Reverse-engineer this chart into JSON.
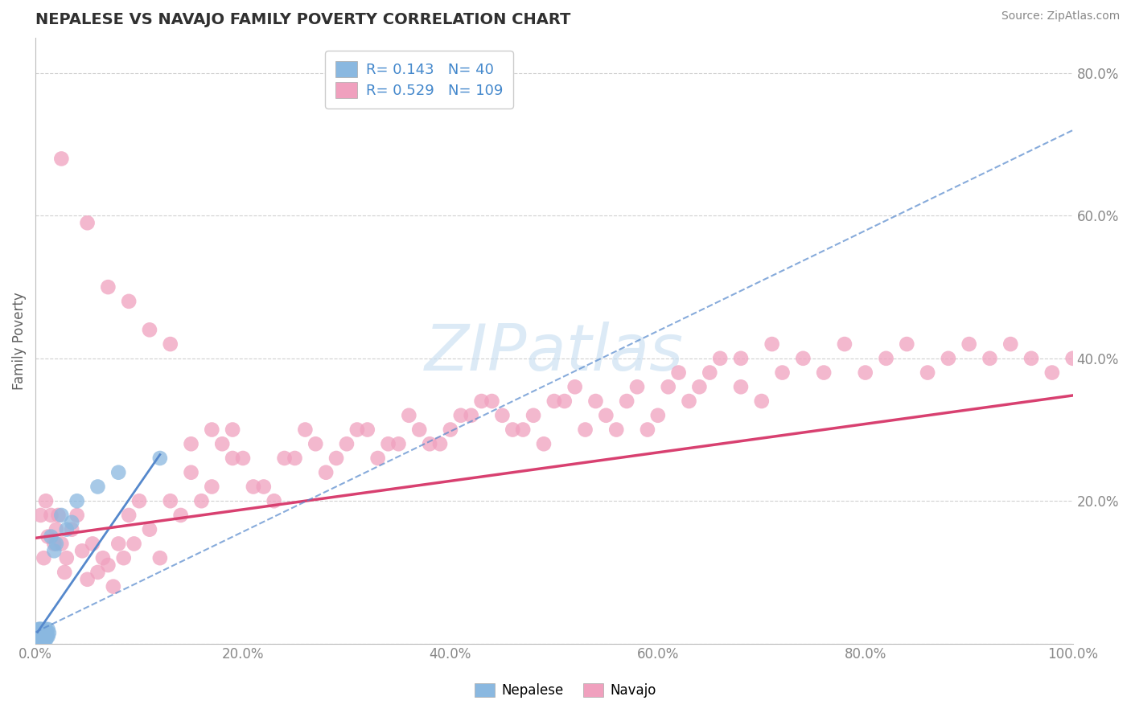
{
  "title": "NEPALESE VS NAVAJO FAMILY POVERTY CORRELATION CHART",
  "source_text": "Source: ZipAtlas.com",
  "ylabel": "Family Poverty",
  "xlim": [
    0.0,
    1.0
  ],
  "ylim": [
    0.0,
    0.85
  ],
  "xtick_vals": [
    0.0,
    0.2,
    0.4,
    0.6,
    0.8,
    1.0
  ],
  "xtick_labels": [
    "0.0%",
    "20.0%",
    "40.0%",
    "60.0%",
    "80.0%",
    "100.0%"
  ],
  "ytick_vals": [
    0.0,
    0.2,
    0.4,
    0.6,
    0.8
  ],
  "ytick_labels": [
    "",
    "20.0%",
    "40.0%",
    "60.0%",
    "80.0%"
  ],
  "nepalese_R": 0.143,
  "nepalese_N": 40,
  "navajo_R": 0.529,
  "navajo_N": 109,
  "nepalese_color": "#8ab8e0",
  "navajo_color": "#f0a0be",
  "nepalese_line_color": "#5588cc",
  "navajo_line_color": "#d84070",
  "title_color": "#303030",
  "axis_label_color": "#606060",
  "tick_color": "#4488cc",
  "grid_color": "#d0d0d0",
  "watermark_color": "#c5ddf0",
  "nepalese_x": [
    0.002,
    0.003,
    0.003,
    0.004,
    0.004,
    0.004,
    0.005,
    0.005,
    0.005,
    0.005,
    0.006,
    0.006,
    0.006,
    0.007,
    0.007,
    0.007,
    0.008,
    0.008,
    0.008,
    0.009,
    0.009,
    0.01,
    0.01,
    0.01,
    0.01,
    0.011,
    0.011,
    0.012,
    0.012,
    0.013,
    0.015,
    0.018,
    0.02,
    0.025,
    0.03,
    0.035,
    0.04,
    0.06,
    0.08,
    0.12
  ],
  "nepalese_y": [
    0.005,
    0.01,
    0.02,
    0.01,
    0.015,
    0.02,
    0.005,
    0.01,
    0.015,
    0.02,
    0.005,
    0.01,
    0.02,
    0.005,
    0.01,
    0.015,
    0.005,
    0.01,
    0.015,
    0.005,
    0.01,
    0.005,
    0.01,
    0.015,
    0.02,
    0.01,
    0.015,
    0.01,
    0.02,
    0.015,
    0.15,
    0.13,
    0.14,
    0.18,
    0.16,
    0.17,
    0.2,
    0.22,
    0.24,
    0.26
  ],
  "navajo_x": [
    0.005,
    0.008,
    0.01,
    0.012,
    0.015,
    0.018,
    0.02,
    0.022,
    0.025,
    0.028,
    0.03,
    0.035,
    0.04,
    0.045,
    0.05,
    0.055,
    0.06,
    0.065,
    0.07,
    0.075,
    0.08,
    0.085,
    0.09,
    0.095,
    0.1,
    0.11,
    0.12,
    0.13,
    0.14,
    0.15,
    0.16,
    0.17,
    0.18,
    0.19,
    0.2,
    0.22,
    0.24,
    0.26,
    0.28,
    0.3,
    0.32,
    0.34,
    0.36,
    0.38,
    0.4,
    0.42,
    0.44,
    0.46,
    0.48,
    0.5,
    0.52,
    0.54,
    0.56,
    0.58,
    0.6,
    0.62,
    0.64,
    0.66,
    0.68,
    0.7,
    0.72,
    0.74,
    0.76,
    0.78,
    0.8,
    0.82,
    0.84,
    0.86,
    0.88,
    0.9,
    0.92,
    0.94,
    0.96,
    0.98,
    1.0,
    0.025,
    0.05,
    0.07,
    0.09,
    0.11,
    0.13,
    0.15,
    0.17,
    0.19,
    0.21,
    0.23,
    0.25,
    0.27,
    0.29,
    0.31,
    0.33,
    0.35,
    0.37,
    0.39,
    0.41,
    0.43,
    0.45,
    0.47,
    0.49,
    0.51,
    0.53,
    0.55,
    0.57,
    0.59,
    0.61,
    0.63,
    0.65,
    0.68,
    0.71
  ],
  "navajo_y": [
    0.18,
    0.12,
    0.2,
    0.15,
    0.18,
    0.14,
    0.16,
    0.18,
    0.14,
    0.1,
    0.12,
    0.16,
    0.18,
    0.13,
    0.09,
    0.14,
    0.1,
    0.12,
    0.11,
    0.08,
    0.14,
    0.12,
    0.18,
    0.14,
    0.2,
    0.16,
    0.12,
    0.2,
    0.18,
    0.24,
    0.2,
    0.22,
    0.28,
    0.3,
    0.26,
    0.22,
    0.26,
    0.3,
    0.24,
    0.28,
    0.3,
    0.28,
    0.32,
    0.28,
    0.3,
    0.32,
    0.34,
    0.3,
    0.32,
    0.34,
    0.36,
    0.34,
    0.3,
    0.36,
    0.32,
    0.38,
    0.36,
    0.4,
    0.36,
    0.34,
    0.38,
    0.4,
    0.38,
    0.42,
    0.38,
    0.4,
    0.42,
    0.38,
    0.4,
    0.42,
    0.4,
    0.42,
    0.4,
    0.38,
    0.4,
    0.68,
    0.59,
    0.5,
    0.48,
    0.44,
    0.42,
    0.28,
    0.3,
    0.26,
    0.22,
    0.2,
    0.26,
    0.28,
    0.26,
    0.3,
    0.26,
    0.28,
    0.3,
    0.28,
    0.32,
    0.34,
    0.32,
    0.3,
    0.28,
    0.34,
    0.3,
    0.32,
    0.34,
    0.3,
    0.36,
    0.34,
    0.38,
    0.4,
    0.42
  ],
  "nep_trend_x": [
    0.002,
    0.12
  ],
  "nep_trend_y": [
    0.016,
    0.265
  ],
  "nav_trend_x": [
    0.0,
    1.0
  ],
  "nav_trend_y": [
    0.148,
    0.348
  ]
}
